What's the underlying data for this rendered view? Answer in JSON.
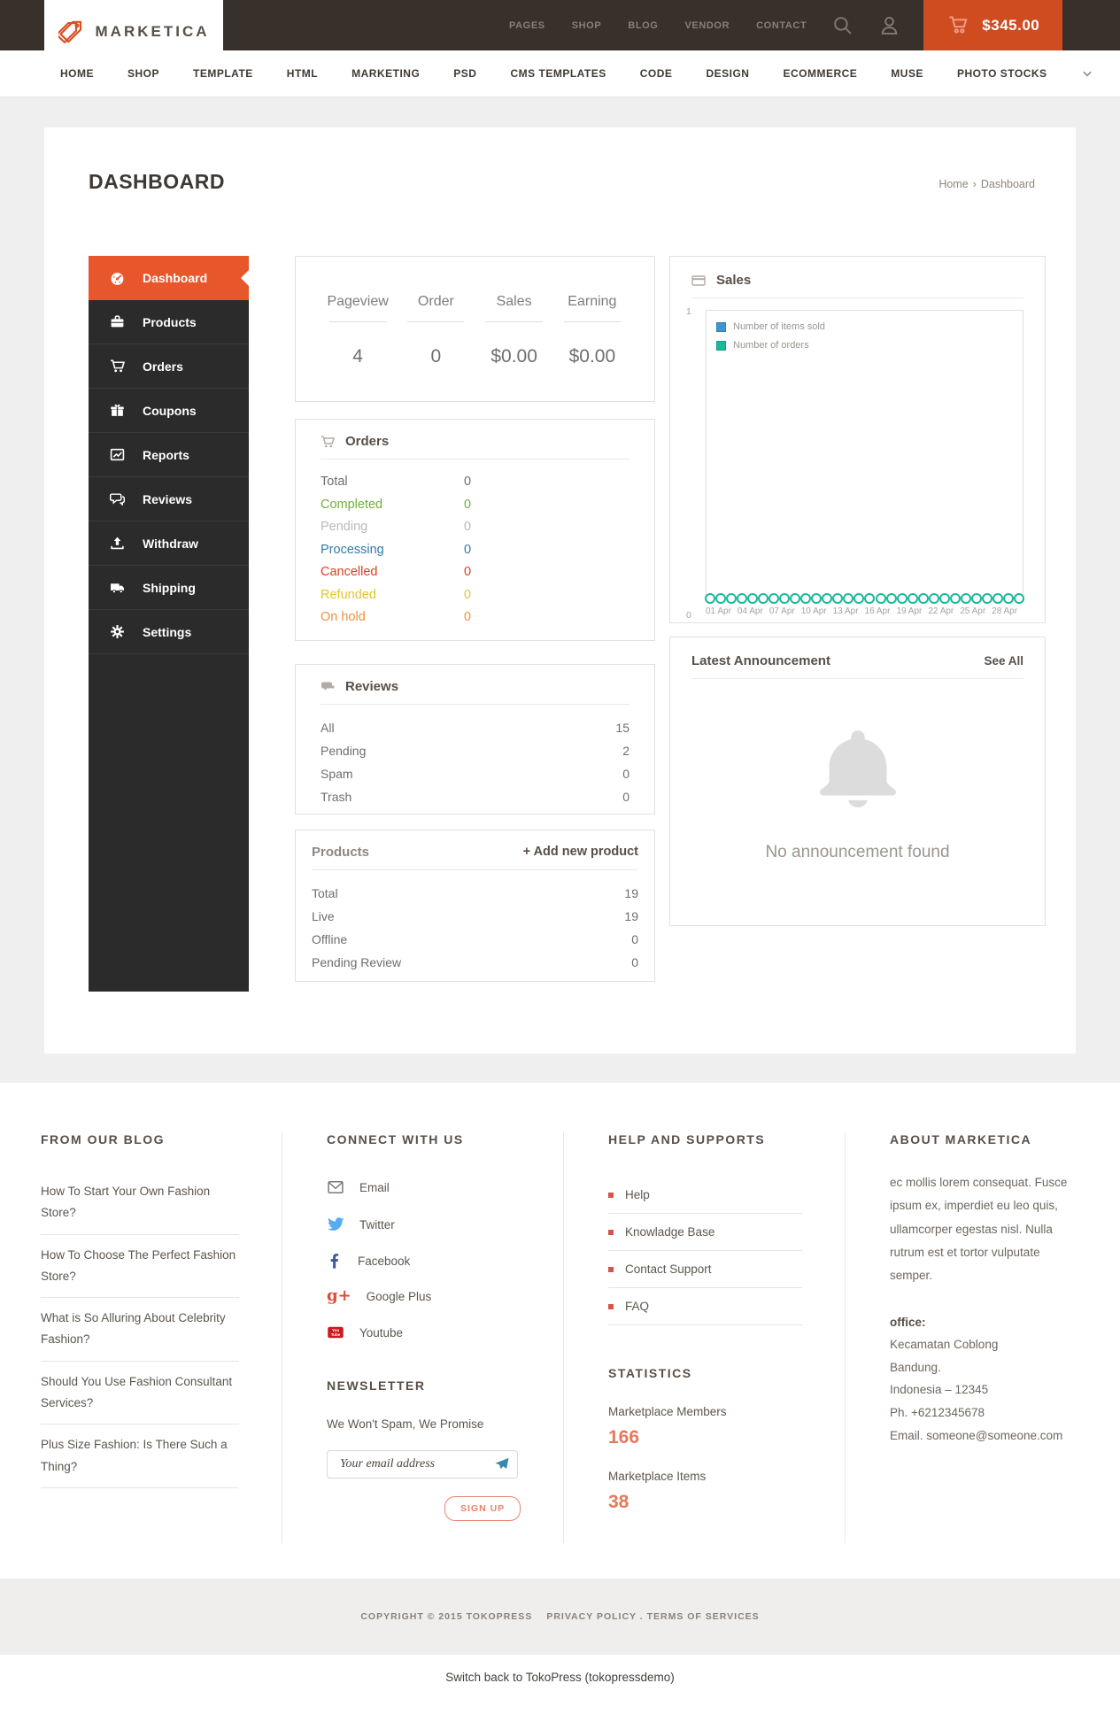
{
  "topbar": {
    "brand": "MARKETICA",
    "links": [
      "PAGES",
      "SHOP",
      "BLOG",
      "VENDOR",
      "CONTACT"
    ],
    "cart_amount": "$345.00",
    "colors": {
      "bar": "#37302b",
      "cart": "#cf4b20",
      "accent": "#d94e1f"
    }
  },
  "mainnav": {
    "links": [
      "HOME",
      "SHOP",
      "TEMPLATE",
      "HTML",
      "MARKETING",
      "PSD",
      "CMS TEMPLATES",
      "CODE",
      "DESIGN",
      "ECOMMERCE",
      "MUSE",
      "PHOTO STOCKS"
    ]
  },
  "page": {
    "title": "DASHBOARD",
    "breadcrumb": {
      "home": "Home",
      "separator": "›",
      "current": "Dashboard"
    }
  },
  "sidebar": {
    "active_color": "#e8562c",
    "items": [
      {
        "label": "Dashboard",
        "icon": "dashboard-icon",
        "active": true
      },
      {
        "label": "Products",
        "icon": "briefcase-icon"
      },
      {
        "label": "Orders",
        "icon": "cart-icon"
      },
      {
        "label": "Coupons",
        "icon": "gift-icon"
      },
      {
        "label": "Reports",
        "icon": "chart-icon"
      },
      {
        "label": "Reviews",
        "icon": "comments-icon"
      },
      {
        "label": "Withdraw",
        "icon": "upload-icon"
      },
      {
        "label": "Shipping",
        "icon": "truck-icon"
      },
      {
        "label": "Settings",
        "icon": "gear-icon"
      }
    ]
  },
  "stats": {
    "items": [
      {
        "label": "Pageview",
        "value": "4"
      },
      {
        "label": "Order",
        "value": "0"
      },
      {
        "label": "Sales",
        "value": "$0.00"
      },
      {
        "label": "Earning",
        "value": "$0.00"
      }
    ]
  },
  "orders_panel": {
    "title": "Orders",
    "rows": [
      {
        "label": "Total",
        "value": "0",
        "color": "#6e6e6e"
      },
      {
        "label": "Completed",
        "value": "0",
        "color": "#72ae3e"
      },
      {
        "label": "Pending",
        "value": "0",
        "color": "#b9b9b9"
      },
      {
        "label": "Processing",
        "value": "0",
        "color": "#3079ab"
      },
      {
        "label": "Cancelled",
        "value": "0",
        "color": "#d9411e"
      },
      {
        "label": "Refunded",
        "value": "0",
        "color": "#e3c531"
      },
      {
        "label": "On hold",
        "value": "0",
        "color": "#f0913d"
      }
    ]
  },
  "reviews_panel": {
    "title": "Reviews",
    "rows": [
      {
        "label": "All",
        "value": "15"
      },
      {
        "label": "Pending",
        "value": "2"
      },
      {
        "label": "Spam",
        "value": "0"
      },
      {
        "label": "Trash",
        "value": "0"
      }
    ]
  },
  "products_panel": {
    "title": "Products",
    "action": "+ Add new product",
    "rows": [
      {
        "label": "Total",
        "value": "19"
      },
      {
        "label": "Live",
        "value": "19"
      },
      {
        "label": "Offline",
        "value": "0"
      },
      {
        "label": "Pending Review",
        "value": "0"
      }
    ]
  },
  "sales_panel": {
    "title": "Sales",
    "chart_data": {
      "type": "line",
      "title": "Sales",
      "ylim": [
        0,
        1
      ],
      "y_ticks": [
        "1",
        "0"
      ],
      "points": 30,
      "x_tick_labels": [
        "01 Apr",
        "04 Apr",
        "07 Apr",
        "10 Apr",
        "13 Apr",
        "16 Apr",
        "19 Apr",
        "22 Apr",
        "25 Apr",
        "28 Apr"
      ],
      "legend_position": "top-left",
      "legend": [
        {
          "name": "Number of items sold",
          "color": "#3d96d2"
        },
        {
          "name": "Number of orders",
          "color": "#1ab99b"
        }
      ],
      "series": [
        {
          "name": "Number of items sold",
          "values": [
            0,
            0,
            0,
            0,
            0,
            0,
            0,
            0,
            0,
            0,
            0,
            0,
            0,
            0,
            0,
            0,
            0,
            0,
            0,
            0,
            0,
            0,
            0,
            0,
            0,
            0,
            0,
            0,
            0,
            0
          ]
        },
        {
          "name": "Number of orders",
          "values": [
            0,
            0,
            0,
            0,
            0,
            0,
            0,
            0,
            0,
            0,
            0,
            0,
            0,
            0,
            0,
            0,
            0,
            0,
            0,
            0,
            0,
            0,
            0,
            0,
            0,
            0,
            0,
            0,
            0,
            0
          ]
        }
      ]
    }
  },
  "announcement_panel": {
    "title": "Latest Announcement",
    "see_all": "See All",
    "empty": "No announcement found"
  },
  "footer": {
    "blog": {
      "title": "FROM OUR BLOG",
      "posts": [
        "How To Start Your Own Fashion Store?",
        "How To Choose The Perfect Fashion Store?",
        "What is So Alluring About Celebrity Fashion?",
        "Should You Use Fashion Consultant Services?",
        "Plus Size Fashion: Is There Such a Thing?"
      ]
    },
    "connect": {
      "title": "CONNECT WITH US",
      "links": [
        {
          "label": "Email",
          "icon": "email-icon",
          "color": "#7d756e"
        },
        {
          "label": "Twitter",
          "icon": "twitter-icon",
          "color": "#55acee"
        },
        {
          "label": "Facebook",
          "icon": "facebook-icon",
          "color": "#3b5998"
        },
        {
          "label": "Google Plus",
          "icon": "google-plus-icon",
          "color": "#dd4b39"
        },
        {
          "label": "Youtube",
          "icon": "youtube-icon",
          "color": "#cc181e"
        }
      ]
    },
    "newsletter": {
      "title": "NEWSLETTER",
      "tagline": "We Won't Spam, We Promise",
      "placeholder": "Your email address",
      "submit": "SIGN UP"
    },
    "help": {
      "title": "HELP AND SUPPORTS",
      "links": [
        "Help",
        "Knowladge Base",
        "Contact Support",
        "FAQ"
      ]
    },
    "statistics": {
      "title": "STATISTICS",
      "value_color": "#e4795c",
      "items": [
        {
          "label": "Marketplace Members",
          "value": "166"
        },
        {
          "label": "Marketplace Items",
          "value": "38"
        }
      ]
    },
    "about": {
      "title": "ABOUT MARKETICA",
      "text": "ec mollis lorem consequat. Fusce ipsum ex, imperdiet eu leo quis, ullamcorper egestas nisl. Nulla rutrum est et tortor vulputate semper.",
      "office_label": "office:",
      "address_lines": [
        "Kecamatan Coblong",
        "Bandung.",
        "Indonesia – 12345",
        "Ph. +6212345678",
        "Email. someone@someone.com"
      ]
    }
  },
  "copyright": {
    "left": "COPYRIGHT © 2015 TOKOPRESS",
    "right": "PRIVACY POLICY . TERMS OF SERVICES"
  },
  "switch_back": "Switch back to TokoPress (tokopressdemo)"
}
